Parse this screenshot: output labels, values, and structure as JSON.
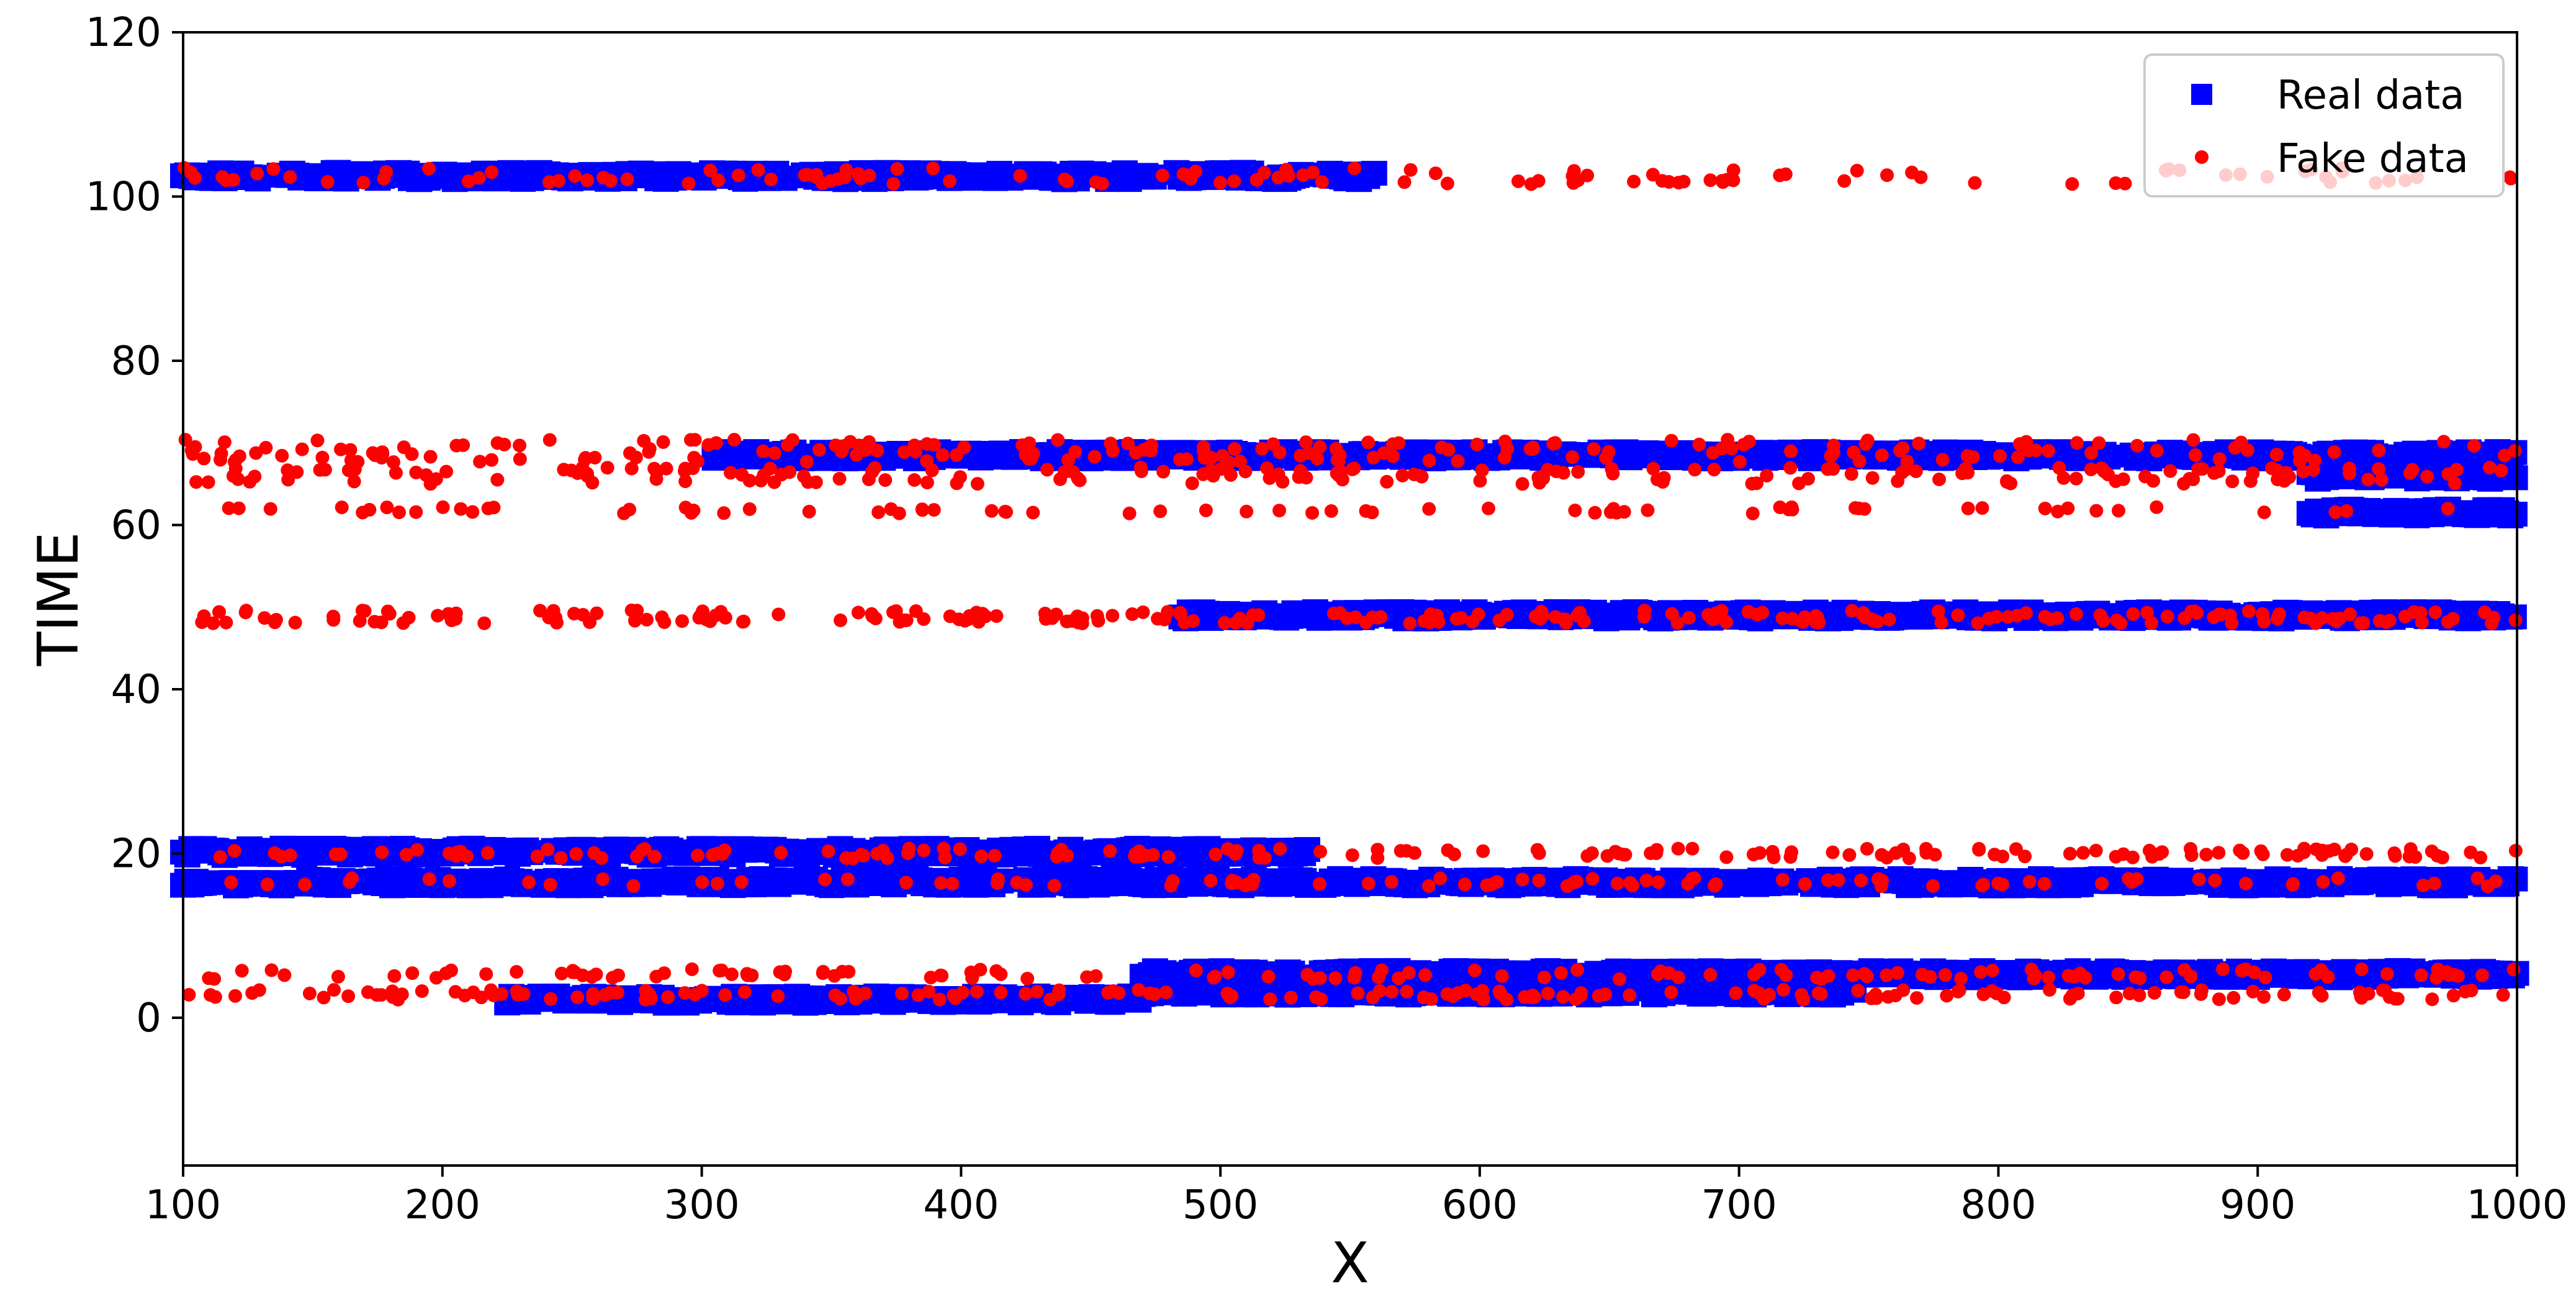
{
  "chart_data": {
    "type": "scatter",
    "title": "",
    "xlabel": "X",
    "ylabel": "TIME",
    "xlim": [
      100,
      1000
    ],
    "ylim": [
      -18,
      120
    ],
    "x_ticks": [
      100,
      200,
      300,
      400,
      500,
      600,
      700,
      800,
      900,
      1000
    ],
    "y_ticks": [
      0,
      20,
      40,
      60,
      80,
      100,
      120
    ],
    "grid": false,
    "legend": {
      "position": "top-right"
    },
    "series": [
      {
        "name": "Real data",
        "marker": "square",
        "color": "#0000ff",
        "bands": [
          {
            "y": 102.5,
            "x_start": 100,
            "x_end": 560,
            "density": 0.85
          },
          {
            "y": 68.5,
            "x_start": 305,
            "x_end": 1000,
            "density": 0.8
          },
          {
            "y": 66,
            "x_start": 920,
            "x_end": 1000,
            "density": 0.9
          },
          {
            "y": 61.5,
            "x_start": 920,
            "x_end": 1000,
            "density": 0.95
          },
          {
            "y": 49,
            "x_start": 485,
            "x_end": 1000,
            "density": 0.95
          },
          {
            "y": 20.2,
            "x_start": 100,
            "x_end": 535,
            "density": 0.75
          },
          {
            "y": 16.5,
            "x_start": 100,
            "x_end": 1000,
            "density": 0.7
          },
          {
            "y": 5.3,
            "x_start": 470,
            "x_end": 1000,
            "density": 0.75
          },
          {
            "y": 3.2,
            "x_start": 470,
            "x_end": 745,
            "density": 0.9
          },
          {
            "y": 2.2,
            "x_start": 225,
            "x_end": 470,
            "density": 0.95
          }
        ]
      },
      {
        "name": "Fake data",
        "marker": "circle",
        "color": "#ff0000",
        "bands": [
          {
            "y": 102.5,
            "x_start": 100,
            "x_end": 1000,
            "count": 120,
            "spread": 1.0
          },
          {
            "y": 69,
            "x_start": 100,
            "x_end": 1000,
            "count": 200,
            "spread": 1.4
          },
          {
            "y": 66,
            "x_start": 100,
            "x_end": 1000,
            "count": 180,
            "spread": 1.0
          },
          {
            "y": 61.8,
            "x_start": 115,
            "x_end": 980,
            "count": 70,
            "spread": 0.4
          },
          {
            "y": 48.8,
            "x_start": 100,
            "x_end": 1000,
            "count": 230,
            "spread": 0.8
          },
          {
            "y": 20,
            "x_start": 100,
            "x_end": 1000,
            "count": 160,
            "spread": 0.6
          },
          {
            "y": 16.5,
            "x_start": 100,
            "x_end": 1000,
            "count": 90,
            "spread": 0.5
          },
          {
            "y": 5.3,
            "x_start": 100,
            "x_end": 1000,
            "count": 130,
            "spread": 0.6
          },
          {
            "y": 2.8,
            "x_start": 100,
            "x_end": 1000,
            "count": 170,
            "spread": 0.6
          }
        ]
      }
    ]
  }
}
